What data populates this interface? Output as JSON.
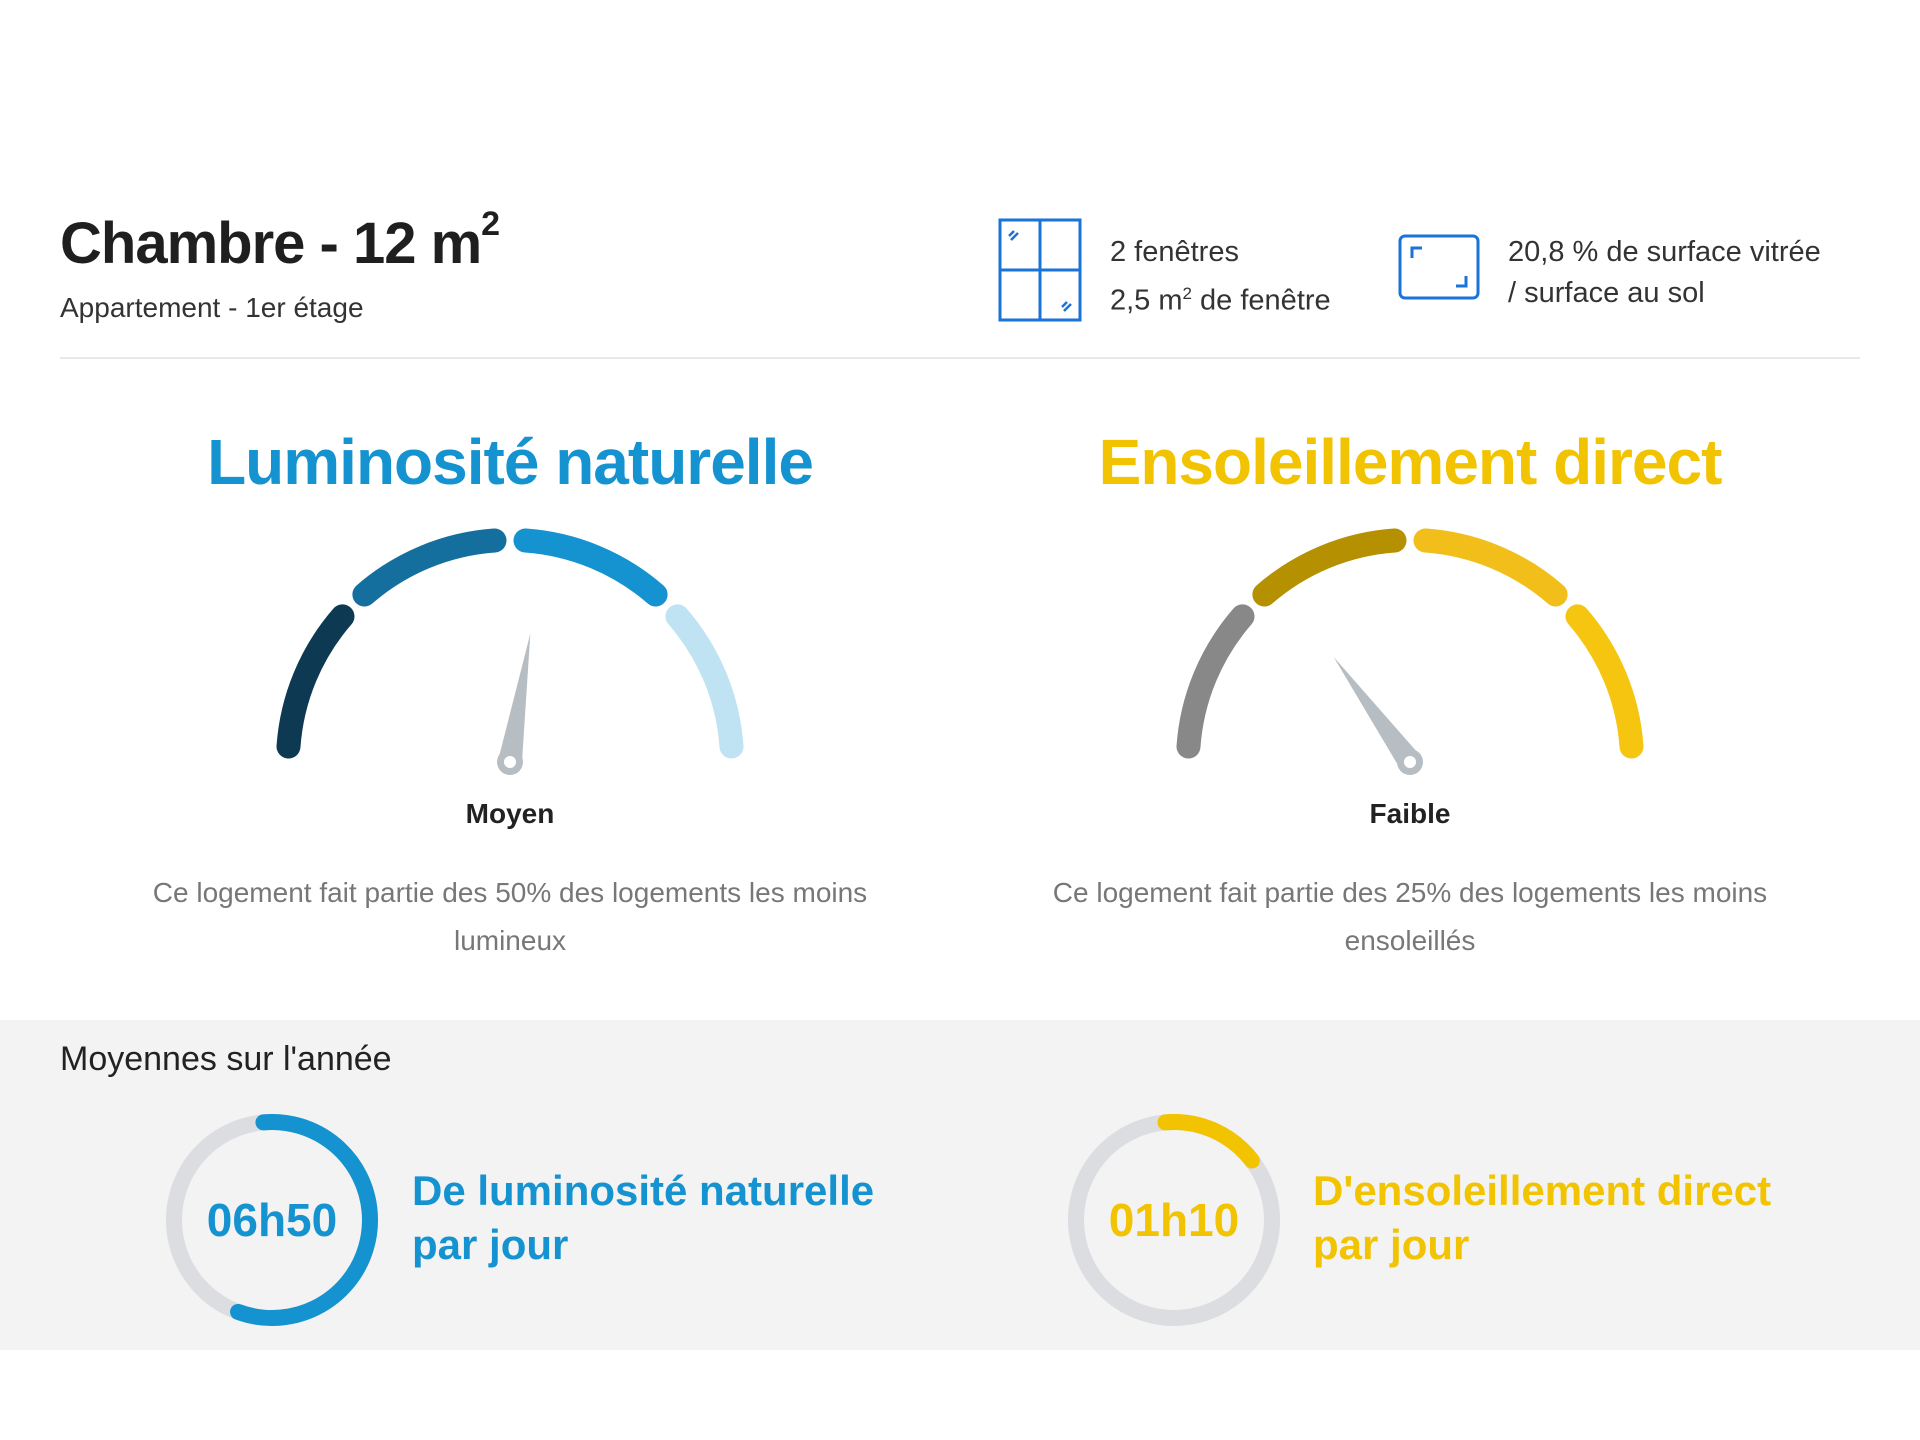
{
  "room": {
    "title": "Chambre - 12 m",
    "title_sup": "2",
    "subtitle": "Appartement - 1er étage"
  },
  "windows": {
    "icon": "window-icon",
    "line1": "2 fenêtres",
    "line2_prefix": "2,5 m",
    "line2_sup": "2",
    "line2_suffix": " de fenêtre"
  },
  "surface": {
    "icon": "glazed-surface-icon",
    "line1": "20,8 % de surface vitrée",
    "line2": "/ surface au sol"
  },
  "gauges": {
    "luminosity": {
      "title": "Luminosité naturelle",
      "level": "Moyen",
      "level_index": 3,
      "level_count": 4,
      "description": "Ce logement fait partie des 50% des logements les moins lumineux",
      "accent": "#1592d0",
      "segment_colors": [
        "#0d3a52",
        "#146f9e",
        "#1592d0",
        "#bfe3f2"
      ]
    },
    "sunshine": {
      "title": "Ensoleillement direct",
      "level": "Faible",
      "level_index": 2,
      "level_count": 4,
      "description": "Ce logement fait partie des 25% des logements les moins ensoleillés",
      "accent": "#f2c300",
      "segment_colors": [
        "#888888",
        "#b59000",
        "#f2bf1a",
        "#f5c510"
      ]
    },
    "needle_color": "#b7bec3"
  },
  "stats": {
    "title": "Moyennes sur l'année",
    "luminosity": {
      "value": "06h50",
      "label_line1": "De luminosité naturelle",
      "label_line2": "par jour",
      "fraction": 0.57,
      "accent": "#1592d0"
    },
    "sunshine": {
      "value": "01h10",
      "label_line1": "D'ensoleillement direct",
      "label_line2": "par jour",
      "fraction": 0.16,
      "accent": "#f2c300"
    },
    "ring_track_color": "#dcdde0"
  }
}
